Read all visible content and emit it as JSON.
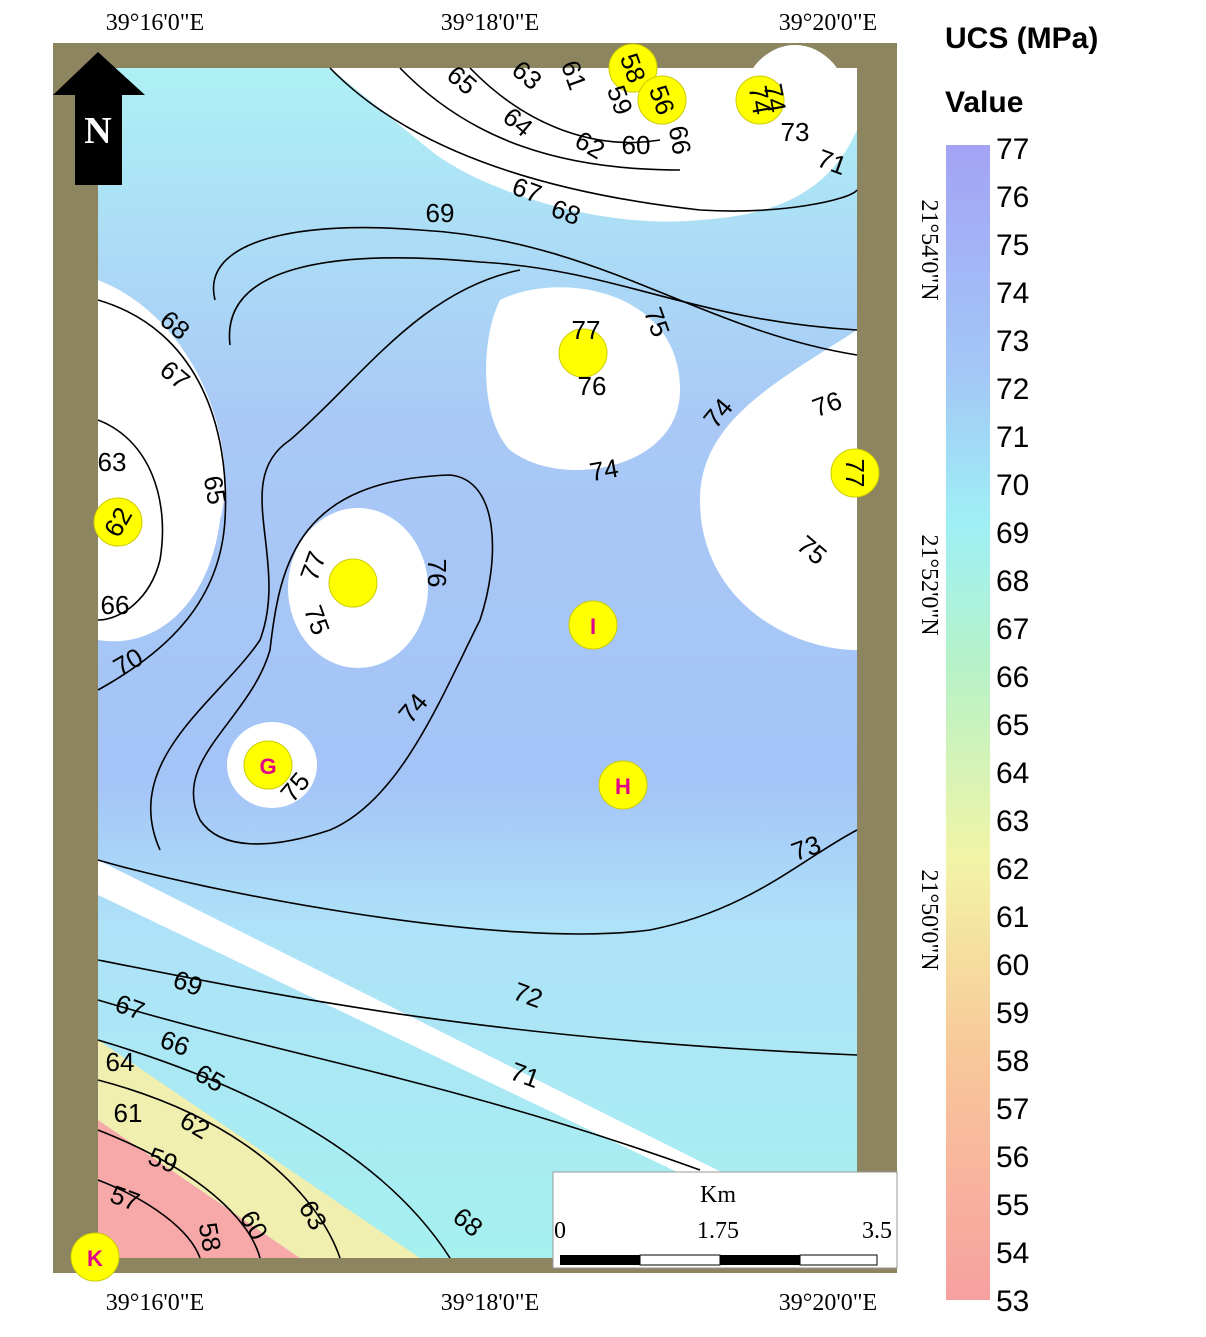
{
  "legend": {
    "title": "UCS (MPa)",
    "subtitle": "Value",
    "ticks": [
      77,
      76,
      75,
      74,
      73,
      72,
      71,
      70,
      69,
      68,
      67,
      66,
      65,
      64,
      63,
      62,
      61,
      60,
      59,
      58,
      57,
      56,
      55,
      54,
      53
    ]
  },
  "axes": {
    "top": [
      "39°16'0\"E",
      "39°18'0\"E",
      "39°20'0\"E"
    ],
    "bottom": [
      "39°16'0\"E",
      "39°18'0\"E",
      "39°20'0\"E"
    ],
    "right": [
      "21°54'0\"N",
      "21°52'0\"N",
      "21°50'0\"N"
    ]
  },
  "north": "N",
  "scale": {
    "unit": "Km",
    "labels": [
      "0",
      "1.75",
      "3.5"
    ]
  },
  "sites": [
    "58",
    "56",
    "74",
    "77",
    "62",
    "I",
    "G",
    "H",
    "K"
  ],
  "contour_labels": [
    65,
    63,
    61,
    64,
    62,
    60,
    59,
    66,
    67,
    68,
    69,
    74,
    73,
    71,
    68,
    67,
    63,
    65,
    66,
    70,
    77,
    75,
    76,
    74,
    76,
    74,
    75,
    77,
    76,
    75,
    74,
    75,
    73,
    69,
    72,
    67,
    66,
    65,
    64,
    71,
    61,
    62,
    59,
    57,
    58,
    60,
    63,
    68
  ]
}
